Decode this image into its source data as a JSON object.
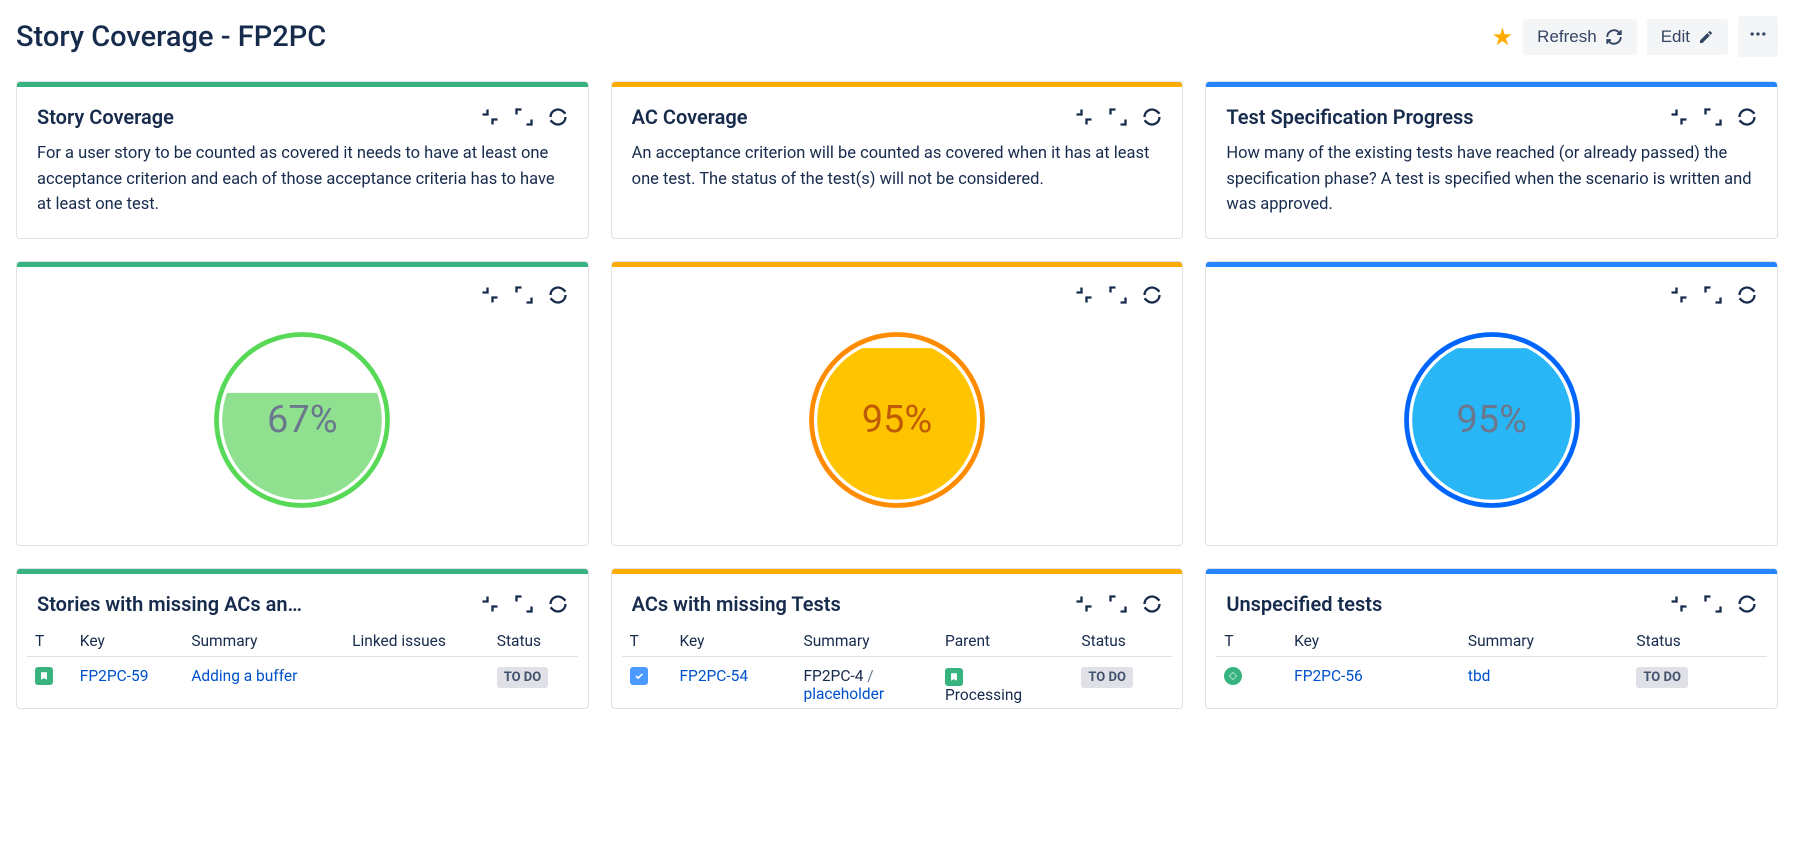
{
  "page": {
    "title": "Story Coverage - FP2PC",
    "refresh_label": "Refresh",
    "edit_label": "Edit"
  },
  "colors": {
    "green": "#36b37e",
    "orange": "#ffab00",
    "blue": "#2684ff",
    "green_fill": "#8fe08f",
    "green_stroke": "#57d957",
    "orange_fill": "#ffc400",
    "orange_stroke": "#ff8b00",
    "blue_fill": "#29b6f6",
    "blue_stroke": "#0065ff",
    "text_dark": "#172b4d",
    "link": "#0052cc"
  },
  "cards": {
    "story_desc": {
      "title": "Story Coverage",
      "text": "For a user story to be counted as covered it needs to have at least one acceptance criterion and each of those acceptance criteria has to have at least one test."
    },
    "ac_desc": {
      "title": "AC Coverage",
      "text": "An acceptance criterion will be counted as covered when it has at least one test. The status of the test(s) will not be considered."
    },
    "spec_desc": {
      "title": "Test Specification Progress",
      "text": "How many of the existing tests have reached (or already passed) the specification phase? A test is specified when the scenario is written and was approved."
    }
  },
  "gauges": {
    "story": {
      "percent": 67,
      "label": "67%",
      "fill": "#8fe08f",
      "stroke": "#57d957",
      "text_color": "#6b778c"
    },
    "ac": {
      "percent": 95,
      "label": "95%",
      "fill": "#ffc400",
      "stroke": "#ff8b00",
      "text_color": "#bf5b04"
    },
    "spec": {
      "percent": 95,
      "label": "95%",
      "fill": "#29b6f6",
      "stroke": "#0065ff",
      "text_color": "#6b778c"
    }
  },
  "tables": {
    "stories_missing": {
      "title": "Stories with missing ACs an…",
      "cols": {
        "t": "T",
        "key": "Key",
        "summary": "Summary",
        "linked": "Linked issues",
        "status": "Status"
      },
      "rows": [
        {
          "type": "story",
          "key": "FP2PC-59",
          "summary": "Adding a buffer",
          "linked": "",
          "status": "TO DO"
        }
      ]
    },
    "acs_missing": {
      "title": "ACs with missing Tests",
      "cols": {
        "t": "T",
        "key": "Key",
        "summary": "Summary",
        "parent": "Parent",
        "status": "Status"
      },
      "rows": [
        {
          "type": "task",
          "key": "FP2PC-54",
          "summary_key": "FP2PC-4",
          "summary_text": "placeholder",
          "parent_text": "Processing",
          "parent_icon": "story",
          "status": "TO DO"
        }
      ]
    },
    "unspecified": {
      "title": "Unspecified tests",
      "cols": {
        "t": "T",
        "key": "Key",
        "summary": "Summary",
        "status": "Status"
      },
      "rows": [
        {
          "type": "test",
          "key": "FP2PC-56",
          "summary": "tbd",
          "status": "TO DO"
        }
      ]
    }
  }
}
